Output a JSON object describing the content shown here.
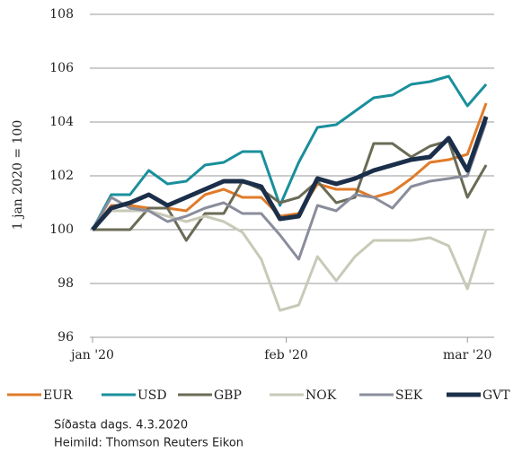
{
  "chart_data": {
    "type": "line",
    "ylabel": "1 jan 2020 = 100",
    "x": [
      0,
      3,
      6,
      9,
      12,
      15,
      18,
      21,
      24,
      27,
      30,
      33,
      36,
      39,
      42,
      45,
      48,
      51,
      54,
      57,
      60,
      63
    ],
    "xlim": [
      0,
      65
    ],
    "xticks": [
      {
        "value": 0,
        "label": "jan '20"
      },
      {
        "value": 31,
        "label": "feb '20"
      },
      {
        "value": 60,
        "label": "mar '20"
      }
    ],
    "ylim": [
      96,
      108
    ],
    "yticks": [
      96,
      98,
      100,
      102,
      104,
      106,
      108
    ],
    "grid": true,
    "series": [
      {
        "name": "EUR",
        "color": "#e07b2a",
        "values": [
          100,
          100.9,
          100.9,
          100.8,
          100.8,
          100.7,
          101.3,
          101.5,
          101.2,
          101.2,
          100.5,
          100.6,
          101.7,
          101.5,
          101.5,
          101.2,
          101.4,
          101.9,
          102.5,
          102.6,
          102.8,
          104.7
        ]
      },
      {
        "name": "USD",
        "color": "#1a8f9c",
        "values": [
          100,
          101.3,
          101.3,
          102.2,
          101.7,
          101.8,
          102.4,
          102.5,
          102.9,
          102.9,
          100.9,
          102.5,
          103.8,
          103.9,
          104.4,
          104.9,
          105.0,
          105.4,
          105.5,
          105.7,
          104.6,
          105.4
        ]
      },
      {
        "name": "GBP",
        "color": "#6b6b56",
        "values": [
          100,
          100,
          100,
          100.8,
          100.8,
          99.6,
          100.6,
          100.6,
          101.8,
          101.5,
          101.0,
          101.2,
          101.8,
          101.0,
          101.2,
          103.2,
          103.2,
          102.7,
          103.1,
          103.3,
          101.2,
          102.4
        ]
      },
      {
        "name": "NOK",
        "color": "#c9c9b8",
        "values": [
          100,
          100.7,
          100.7,
          100.7,
          100.5,
          100.3,
          100.5,
          100.3,
          99.9,
          98.9,
          97.0,
          97.2,
          99.0,
          98.1,
          99.0,
          99.6,
          99.6,
          99.6,
          99.7,
          99.4,
          97.8,
          100.0
        ]
      },
      {
        "name": "SEK",
        "color": "#8a8d9c",
        "values": [
          100,
          101.2,
          100.8,
          100.7,
          100.3,
          100.5,
          100.8,
          101.0,
          100.6,
          100.6,
          99.8,
          98.9,
          100.9,
          100.7,
          101.3,
          101.2,
          100.8,
          101.6,
          101.8,
          101.9,
          102.0,
          104.0
        ]
      },
      {
        "name": "GVT",
        "color": "#1b2f4a",
        "values": [
          100,
          100.8,
          101.0,
          101.3,
          100.9,
          101.2,
          101.5,
          101.8,
          101.8,
          101.6,
          100.4,
          100.5,
          101.9,
          101.7,
          101.9,
          102.2,
          102.4,
          102.6,
          102.7,
          103.4,
          102.2,
          104.2
        ]
      }
    ],
    "notes": [
      "Síðasta dags. 4.3.2020",
      "Heimild: Thomson Reuters Eikon"
    ]
  }
}
